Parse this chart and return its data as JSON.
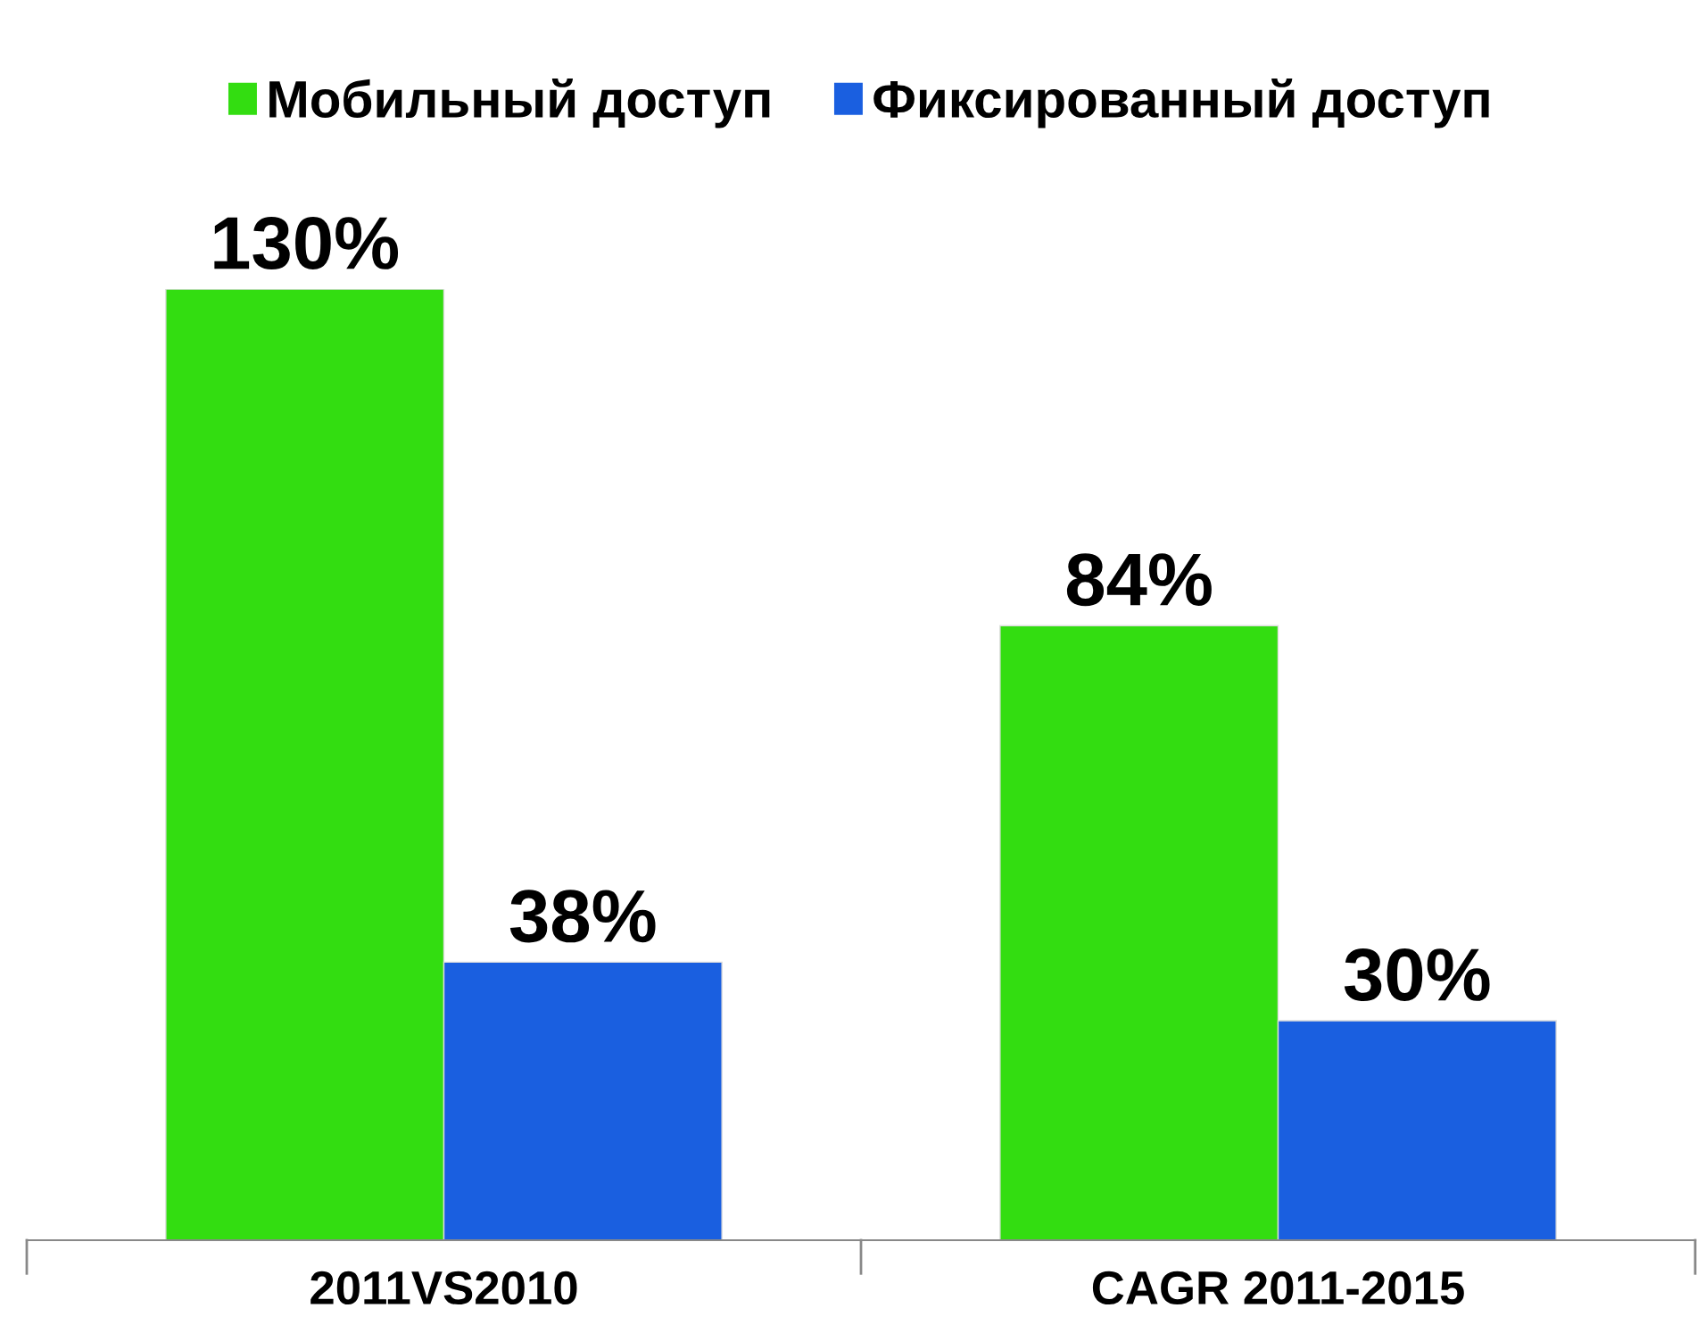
{
  "chart_data": {
    "type": "bar",
    "categories": [
      "2011VS2010",
      "CAGR 2011-2015"
    ],
    "series": [
      {
        "name": "Мобильный доступ",
        "color": "#33dd11",
        "values": [
          130,
          84
        ],
        "value_labels": [
          "130%",
          "84%"
        ]
      },
      {
        "name": "Фиксированный доступ",
        "color": "#1a5fe0",
        "values": [
          38,
          30
        ],
        "value_labels": [
          "38%",
          "30%"
        ]
      }
    ],
    "legend": "top",
    "grid": false
  }
}
